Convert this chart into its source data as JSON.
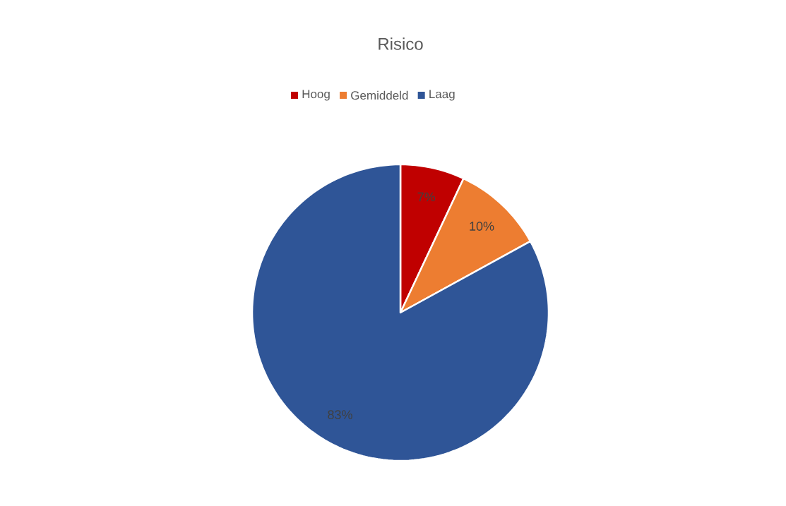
{
  "chart_data": {
    "type": "pie",
    "title": "Risico",
    "categories": [
      "Hoog",
      "Gemiddeld",
      "Laag"
    ],
    "values": [
      7,
      10,
      83
    ],
    "value_labels": [
      "7%",
      "10%",
      "83%"
    ],
    "colors": [
      "#c00000",
      "#ed7d31",
      "#2f5597"
    ],
    "legend": "top"
  }
}
